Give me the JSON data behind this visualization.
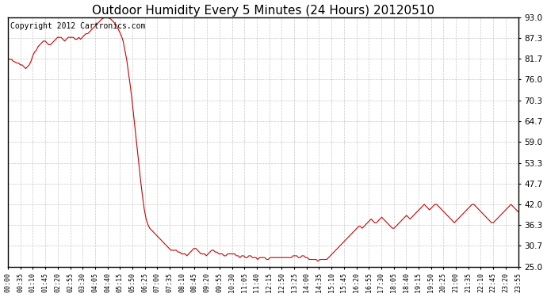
{
  "title": "Outdoor Humidity Every 5 Minutes (24 Hours) 20120510",
  "copyright_text": "Copyright 2012 Cartronics.com",
  "title_fontsize": 11,
  "line_color": "#cc0000",
  "background_color": "#ffffff",
  "grid_color": "#bbbbbb",
  "ylim": [
    25.0,
    93.0
  ],
  "yticks": [
    25.0,
    30.7,
    36.3,
    42.0,
    47.7,
    53.3,
    59.0,
    64.7,
    70.3,
    76.0,
    81.7,
    87.3,
    93.0
  ],
  "xtick_labels": [
    "00:00",
    "00:35",
    "01:10",
    "01:45",
    "02:20",
    "02:55",
    "03:30",
    "04:05",
    "04:40",
    "05:15",
    "05:50",
    "06:25",
    "07:00",
    "07:35",
    "08:10",
    "08:45",
    "09:20",
    "09:55",
    "10:30",
    "11:05",
    "11:40",
    "12:15",
    "12:50",
    "13:25",
    "14:00",
    "14:35",
    "15:10",
    "15:45",
    "16:20",
    "16:55",
    "17:30",
    "18:05",
    "18:40",
    "19:15",
    "19:50",
    "20:25",
    "21:00",
    "21:35",
    "22:10",
    "22:45",
    "23:20",
    "23:55"
  ],
  "humidity_data": [
    [
      0,
      81.7
    ],
    [
      1,
      81.5
    ],
    [
      2,
      81.5
    ],
    [
      3,
      81.0
    ],
    [
      4,
      80.8
    ],
    [
      5,
      80.5
    ],
    [
      6,
      80.5
    ],
    [
      7,
      80.0
    ],
    [
      8,
      80.0
    ],
    [
      9,
      79.5
    ],
    [
      10,
      79.0
    ],
    [
      11,
      79.5
    ],
    [
      12,
      80.0
    ],
    [
      13,
      81.0
    ],
    [
      14,
      82.5
    ],
    [
      15,
      83.5
    ],
    [
      16,
      84.0
    ],
    [
      17,
      85.0
    ],
    [
      18,
      85.5
    ],
    [
      19,
      86.0
    ],
    [
      20,
      86.5
    ],
    [
      21,
      86.5
    ],
    [
      22,
      86.0
    ],
    [
      23,
      85.5
    ],
    [
      24,
      85.5
    ],
    [
      25,
      86.0
    ],
    [
      26,
      86.5
    ],
    [
      27,
      87.0
    ],
    [
      28,
      87.5
    ],
    [
      29,
      87.5
    ],
    [
      30,
      87.5
    ],
    [
      31,
      87.0
    ],
    [
      32,
      86.5
    ],
    [
      33,
      87.0
    ],
    [
      34,
      87.5
    ],
    [
      35,
      87.5
    ],
    [
      36,
      87.5
    ],
    [
      37,
      87.5
    ],
    [
      38,
      87.0
    ],
    [
      39,
      87.0
    ],
    [
      40,
      87.5
    ],
    [
      41,
      87.0
    ],
    [
      42,
      87.5
    ],
    [
      43,
      88.0
    ],
    [
      44,
      88.5
    ],
    [
      45,
      88.5
    ],
    [
      46,
      89.0
    ],
    [
      47,
      89.5
    ],
    [
      48,
      90.0
    ],
    [
      49,
      90.5
    ],
    [
      50,
      91.0
    ],
    [
      51,
      91.5
    ],
    [
      52,
      92.0
    ],
    [
      53,
      92.5
    ],
    [
      54,
      92.8
    ],
    [
      55,
      93.0
    ],
    [
      56,
      93.0
    ],
    [
      57,
      92.8
    ],
    [
      58,
      92.5
    ],
    [
      59,
      92.0
    ],
    [
      60,
      91.5
    ],
    [
      61,
      91.0
    ],
    [
      62,
      90.0
    ],
    [
      63,
      89.0
    ],
    [
      64,
      88.0
    ],
    [
      65,
      86.5
    ],
    [
      66,
      84.0
    ],
    [
      67,
      81.5
    ],
    [
      68,
      78.0
    ],
    [
      69,
      74.5
    ],
    [
      70,
      70.5
    ],
    [
      71,
      66.0
    ],
    [
      72,
      61.5
    ],
    [
      73,
      57.0
    ],
    [
      74,
      52.5
    ],
    [
      75,
      48.0
    ],
    [
      76,
      44.0
    ],
    [
      77,
      40.5
    ],
    [
      78,
      38.0
    ],
    [
      79,
      36.5
    ],
    [
      80,
      35.5
    ],
    [
      81,
      35.0
    ],
    [
      82,
      34.5
    ],
    [
      83,
      34.0
    ],
    [
      84,
      33.5
    ],
    [
      85,
      33.0
    ],
    [
      86,
      32.5
    ],
    [
      87,
      32.0
    ],
    [
      88,
      31.5
    ],
    [
      89,
      31.0
    ],
    [
      90,
      30.5
    ],
    [
      91,
      30.0
    ],
    [
      92,
      29.5
    ],
    [
      93,
      29.5
    ],
    [
      94,
      29.5
    ],
    [
      95,
      29.5
    ],
    [
      96,
      29.0
    ],
    [
      97,
      29.0
    ],
    [
      98,
      28.5
    ],
    [
      99,
      28.5
    ],
    [
      100,
      28.5
    ],
    [
      101,
      28.0
    ],
    [
      102,
      28.5
    ],
    [
      103,
      29.0
    ],
    [
      104,
      29.5
    ],
    [
      105,
      30.0
    ],
    [
      106,
      30.0
    ],
    [
      107,
      29.5
    ],
    [
      108,
      29.0
    ],
    [
      109,
      28.5
    ],
    [
      110,
      28.5
    ],
    [
      111,
      28.5
    ],
    [
      112,
      28.0
    ],
    [
      113,
      28.5
    ],
    [
      114,
      29.0
    ],
    [
      115,
      29.5
    ],
    [
      116,
      29.5
    ],
    [
      117,
      29.0
    ],
    [
      118,
      29.0
    ],
    [
      119,
      28.5
    ],
    [
      120,
      28.5
    ],
    [
      121,
      28.5
    ],
    [
      122,
      28.0
    ],
    [
      123,
      28.0
    ],
    [
      124,
      28.5
    ],
    [
      125,
      28.5
    ],
    [
      126,
      28.5
    ],
    [
      127,
      28.5
    ],
    [
      128,
      28.5
    ],
    [
      129,
      28.0
    ],
    [
      130,
      28.0
    ],
    [
      131,
      27.5
    ],
    [
      132,
      28.0
    ],
    [
      133,
      28.0
    ],
    [
      134,
      27.5
    ],
    [
      135,
      27.5
    ],
    [
      136,
      28.0
    ],
    [
      137,
      28.0
    ],
    [
      138,
      27.5
    ],
    [
      139,
      27.5
    ],
    [
      140,
      27.5
    ],
    [
      141,
      27.0
    ],
    [
      142,
      27.5
    ],
    [
      143,
      27.5
    ],
    [
      144,
      27.5
    ],
    [
      145,
      27.5
    ],
    [
      146,
      27.0
    ],
    [
      147,
      27.0
    ],
    [
      148,
      27.5
    ],
    [
      149,
      27.5
    ],
    [
      150,
      27.5
    ],
    [
      151,
      27.5
    ],
    [
      152,
      27.5
    ],
    [
      153,
      27.5
    ],
    [
      154,
      27.5
    ],
    [
      155,
      27.5
    ],
    [
      156,
      27.5
    ],
    [
      157,
      27.5
    ],
    [
      158,
      27.5
    ],
    [
      159,
      27.5
    ],
    [
      160,
      27.5
    ],
    [
      161,
      28.0
    ],
    [
      162,
      28.0
    ],
    [
      163,
      28.0
    ],
    [
      164,
      27.5
    ],
    [
      165,
      27.5
    ],
    [
      166,
      28.0
    ],
    [
      167,
      28.0
    ],
    [
      168,
      27.5
    ],
    [
      169,
      27.5
    ],
    [
      170,
      27.0
    ],
    [
      171,
      27.0
    ],
    [
      172,
      27.0
    ],
    [
      173,
      27.0
    ],
    [
      174,
      27.0
    ],
    [
      175,
      26.5
    ],
    [
      176,
      27.0
    ],
    [
      177,
      27.0
    ],
    [
      178,
      27.0
    ],
    [
      179,
      27.0
    ],
    [
      180,
      27.0
    ],
    [
      181,
      27.5
    ],
    [
      182,
      28.0
    ],
    [
      183,
      28.5
    ],
    [
      184,
      29.0
    ],
    [
      185,
      29.5
    ],
    [
      186,
      30.0
    ],
    [
      187,
      30.5
    ],
    [
      188,
      31.0
    ],
    [
      189,
      31.5
    ],
    [
      190,
      32.0
    ],
    [
      191,
      32.5
    ],
    [
      192,
      33.0
    ],
    [
      193,
      33.5
    ],
    [
      194,
      34.0
    ],
    [
      195,
      34.5
    ],
    [
      196,
      35.0
    ],
    [
      197,
      35.5
    ],
    [
      198,
      36.0
    ],
    [
      199,
      36.0
    ],
    [
      200,
      35.5
    ],
    [
      201,
      36.0
    ],
    [
      202,
      36.5
    ],
    [
      203,
      37.0
    ],
    [
      204,
      37.5
    ],
    [
      205,
      38.0
    ],
    [
      206,
      37.5
    ],
    [
      207,
      37.0
    ],
    [
      208,
      37.0
    ],
    [
      209,
      37.5
    ],
    [
      210,
      38.0
    ],
    [
      211,
      38.5
    ],
    [
      212,
      38.0
    ],
    [
      213,
      37.5
    ],
    [
      214,
      37.0
    ],
    [
      215,
      36.5
    ],
    [
      216,
      36.0
    ],
    [
      217,
      35.5
    ],
    [
      218,
      35.5
    ],
    [
      219,
      36.0
    ],
    [
      220,
      36.5
    ],
    [
      221,
      37.0
    ],
    [
      222,
      37.5
    ],
    [
      223,
      38.0
    ],
    [
      224,
      38.5
    ],
    [
      225,
      39.0
    ],
    [
      226,
      38.5
    ],
    [
      227,
      38.0
    ],
    [
      228,
      38.5
    ],
    [
      229,
      39.0
    ],
    [
      230,
      39.5
    ],
    [
      231,
      40.0
    ],
    [
      232,
      40.5
    ],
    [
      233,
      41.0
    ],
    [
      234,
      41.5
    ],
    [
      235,
      42.0
    ],
    [
      236,
      41.5
    ],
    [
      237,
      41.0
    ],
    [
      238,
      40.5
    ],
    [
      239,
      41.0
    ],
    [
      240,
      41.5
    ],
    [
      241,
      42.0
    ],
    [
      242,
      42.0
    ],
    [
      243,
      41.5
    ],
    [
      244,
      41.0
    ],
    [
      245,
      40.5
    ],
    [
      246,
      40.0
    ],
    [
      247,
      39.5
    ],
    [
      248,
      39.0
    ],
    [
      249,
      38.5
    ],
    [
      250,
      38.0
    ],
    [
      251,
      37.5
    ],
    [
      252,
      37.0
    ],
    [
      253,
      37.5
    ],
    [
      254,
      38.0
    ],
    [
      255,
      38.5
    ],
    [
      256,
      39.0
    ],
    [
      257,
      39.5
    ],
    [
      258,
      40.0
    ],
    [
      259,
      40.5
    ],
    [
      260,
      41.0
    ],
    [
      261,
      41.5
    ],
    [
      262,
      42.0
    ],
    [
      263,
      42.0
    ],
    [
      264,
      41.5
    ],
    [
      265,
      41.0
    ],
    [
      266,
      40.5
    ],
    [
      267,
      40.0
    ],
    [
      268,
      39.5
    ],
    [
      269,
      39.0
    ],
    [
      270,
      38.5
    ],
    [
      271,
      38.0
    ],
    [
      272,
      37.5
    ],
    [
      273,
      37.0
    ],
    [
      274,
      37.0
    ],
    [
      275,
      37.5
    ],
    [
      276,
      38.0
    ],
    [
      277,
      38.5
    ],
    [
      278,
      39.0
    ],
    [
      279,
      39.5
    ],
    [
      280,
      40.0
    ],
    [
      281,
      40.5
    ],
    [
      282,
      41.0
    ],
    [
      283,
      41.5
    ],
    [
      284,
      42.0
    ],
    [
      285,
      41.5
    ],
    [
      286,
      41.0
    ],
    [
      287,
      40.5
    ],
    [
      288,
      40.0
    ]
  ]
}
